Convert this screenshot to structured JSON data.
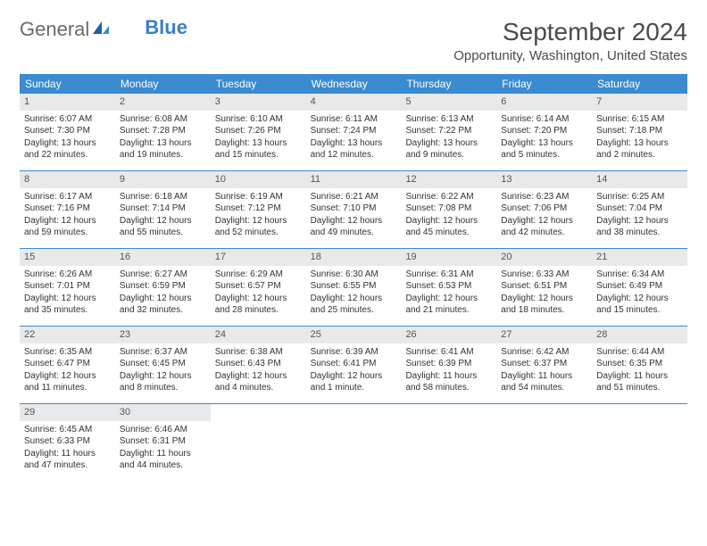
{
  "logo": {
    "word1": "General",
    "word2": "Blue"
  },
  "title": "September 2024",
  "location": "Opportunity, Washington, United States",
  "colors": {
    "header_bg": "#3a8bd0",
    "header_text": "#ffffff",
    "daynum_bg": "#e9e9e9",
    "border": "#3a8bd0",
    "logo_blue": "#3a7fc8",
    "logo_gray": "#6b6b6b"
  },
  "day_names": [
    "Sunday",
    "Monday",
    "Tuesday",
    "Wednesday",
    "Thursday",
    "Friday",
    "Saturday"
  ],
  "days": [
    {
      "n": "1",
      "sr": "Sunrise: 6:07 AM",
      "ss": "Sunset: 7:30 PM",
      "d1": "Daylight: 13 hours",
      "d2": "and 22 minutes."
    },
    {
      "n": "2",
      "sr": "Sunrise: 6:08 AM",
      "ss": "Sunset: 7:28 PM",
      "d1": "Daylight: 13 hours",
      "d2": "and 19 minutes."
    },
    {
      "n": "3",
      "sr": "Sunrise: 6:10 AM",
      "ss": "Sunset: 7:26 PM",
      "d1": "Daylight: 13 hours",
      "d2": "and 15 minutes."
    },
    {
      "n": "4",
      "sr": "Sunrise: 6:11 AM",
      "ss": "Sunset: 7:24 PM",
      "d1": "Daylight: 13 hours",
      "d2": "and 12 minutes."
    },
    {
      "n": "5",
      "sr": "Sunrise: 6:13 AM",
      "ss": "Sunset: 7:22 PM",
      "d1": "Daylight: 13 hours",
      "d2": "and 9 minutes."
    },
    {
      "n": "6",
      "sr": "Sunrise: 6:14 AM",
      "ss": "Sunset: 7:20 PM",
      "d1": "Daylight: 13 hours",
      "d2": "and 5 minutes."
    },
    {
      "n": "7",
      "sr": "Sunrise: 6:15 AM",
      "ss": "Sunset: 7:18 PM",
      "d1": "Daylight: 13 hours",
      "d2": "and 2 minutes."
    },
    {
      "n": "8",
      "sr": "Sunrise: 6:17 AM",
      "ss": "Sunset: 7:16 PM",
      "d1": "Daylight: 12 hours",
      "d2": "and 59 minutes."
    },
    {
      "n": "9",
      "sr": "Sunrise: 6:18 AM",
      "ss": "Sunset: 7:14 PM",
      "d1": "Daylight: 12 hours",
      "d2": "and 55 minutes."
    },
    {
      "n": "10",
      "sr": "Sunrise: 6:19 AM",
      "ss": "Sunset: 7:12 PM",
      "d1": "Daylight: 12 hours",
      "d2": "and 52 minutes."
    },
    {
      "n": "11",
      "sr": "Sunrise: 6:21 AM",
      "ss": "Sunset: 7:10 PM",
      "d1": "Daylight: 12 hours",
      "d2": "and 49 minutes."
    },
    {
      "n": "12",
      "sr": "Sunrise: 6:22 AM",
      "ss": "Sunset: 7:08 PM",
      "d1": "Daylight: 12 hours",
      "d2": "and 45 minutes."
    },
    {
      "n": "13",
      "sr": "Sunrise: 6:23 AM",
      "ss": "Sunset: 7:06 PM",
      "d1": "Daylight: 12 hours",
      "d2": "and 42 minutes."
    },
    {
      "n": "14",
      "sr": "Sunrise: 6:25 AM",
      "ss": "Sunset: 7:04 PM",
      "d1": "Daylight: 12 hours",
      "d2": "and 38 minutes."
    },
    {
      "n": "15",
      "sr": "Sunrise: 6:26 AM",
      "ss": "Sunset: 7:01 PM",
      "d1": "Daylight: 12 hours",
      "d2": "and 35 minutes."
    },
    {
      "n": "16",
      "sr": "Sunrise: 6:27 AM",
      "ss": "Sunset: 6:59 PM",
      "d1": "Daylight: 12 hours",
      "d2": "and 32 minutes."
    },
    {
      "n": "17",
      "sr": "Sunrise: 6:29 AM",
      "ss": "Sunset: 6:57 PM",
      "d1": "Daylight: 12 hours",
      "d2": "and 28 minutes."
    },
    {
      "n": "18",
      "sr": "Sunrise: 6:30 AM",
      "ss": "Sunset: 6:55 PM",
      "d1": "Daylight: 12 hours",
      "d2": "and 25 minutes."
    },
    {
      "n": "19",
      "sr": "Sunrise: 6:31 AM",
      "ss": "Sunset: 6:53 PM",
      "d1": "Daylight: 12 hours",
      "d2": "and 21 minutes."
    },
    {
      "n": "20",
      "sr": "Sunrise: 6:33 AM",
      "ss": "Sunset: 6:51 PM",
      "d1": "Daylight: 12 hours",
      "d2": "and 18 minutes."
    },
    {
      "n": "21",
      "sr": "Sunrise: 6:34 AM",
      "ss": "Sunset: 6:49 PM",
      "d1": "Daylight: 12 hours",
      "d2": "and 15 minutes."
    },
    {
      "n": "22",
      "sr": "Sunrise: 6:35 AM",
      "ss": "Sunset: 6:47 PM",
      "d1": "Daylight: 12 hours",
      "d2": "and 11 minutes."
    },
    {
      "n": "23",
      "sr": "Sunrise: 6:37 AM",
      "ss": "Sunset: 6:45 PM",
      "d1": "Daylight: 12 hours",
      "d2": "and 8 minutes."
    },
    {
      "n": "24",
      "sr": "Sunrise: 6:38 AM",
      "ss": "Sunset: 6:43 PM",
      "d1": "Daylight: 12 hours",
      "d2": "and 4 minutes."
    },
    {
      "n": "25",
      "sr": "Sunrise: 6:39 AM",
      "ss": "Sunset: 6:41 PM",
      "d1": "Daylight: 12 hours",
      "d2": "and 1 minute."
    },
    {
      "n": "26",
      "sr": "Sunrise: 6:41 AM",
      "ss": "Sunset: 6:39 PM",
      "d1": "Daylight: 11 hours",
      "d2": "and 58 minutes."
    },
    {
      "n": "27",
      "sr": "Sunrise: 6:42 AM",
      "ss": "Sunset: 6:37 PM",
      "d1": "Daylight: 11 hours",
      "d2": "and 54 minutes."
    },
    {
      "n": "28",
      "sr": "Sunrise: 6:44 AM",
      "ss": "Sunset: 6:35 PM",
      "d1": "Daylight: 11 hours",
      "d2": "and 51 minutes."
    },
    {
      "n": "29",
      "sr": "Sunrise: 6:45 AM",
      "ss": "Sunset: 6:33 PM",
      "d1": "Daylight: 11 hours",
      "d2": "and 47 minutes."
    },
    {
      "n": "30",
      "sr": "Sunrise: 6:46 AM",
      "ss": "Sunset: 6:31 PM",
      "d1": "Daylight: 11 hours",
      "d2": "and 44 minutes."
    }
  ]
}
